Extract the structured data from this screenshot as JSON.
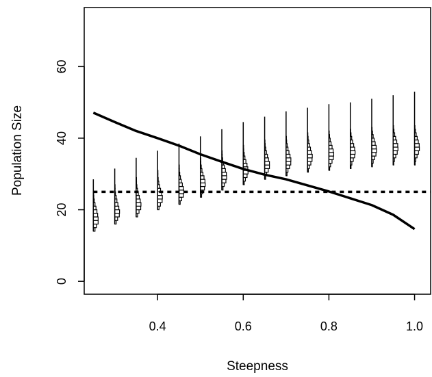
{
  "chart_data": {
    "type": "line",
    "title": "",
    "xlabel": "Steepness",
    "ylabel": "Population Size",
    "xlim": [
      0.2287,
      1.0375
    ],
    "ylim": [
      -3.6,
      76.5
    ],
    "x_ticks": [
      0.4,
      0.6,
      0.8,
      1.0
    ],
    "x_tick_labels": [
      "0.4",
      "0.6",
      "0.8",
      "1.0"
    ],
    "y_ticks": [
      0,
      20,
      40,
      60
    ],
    "y_tick_labels": [
      "0",
      "20",
      "40",
      "60"
    ],
    "grid": false,
    "legend": "none",
    "series": [
      {
        "kind": "solid-line",
        "x": [
          0.25,
          0.3,
          0.35,
          0.4,
          0.45,
          0.5,
          0.55,
          0.6,
          0.65,
          0.7,
          0.75,
          0.8,
          0.85,
          0.9,
          0.95,
          1.0
        ],
        "y": [
          47.1,
          44.5,
          42,
          40,
          37.9,
          35.5,
          33.4,
          31.4,
          29.8,
          28.5,
          26.8,
          25.1,
          23.2,
          21.3,
          18.6,
          14.6
        ]
      },
      {
        "kind": "dashed-reference",
        "x": [
          0.25,
          1.0375
        ],
        "y": [
          25,
          25
        ]
      }
    ],
    "distributions": {
      "bin_width": 1,
      "density_scale_steepness_per_unit": 0.0112,
      "groups": [
        {
          "x": 0.25,
          "y_min": 14,
          "y_max": 28.5,
          "bins_start": 14,
          "counts": [
            0.35,
            0.65,
            1.0,
            1.0,
            0.9,
            0.75,
            0.55,
            0.35,
            0.2,
            0.1,
            0.05
          ]
        },
        {
          "x": 0.3,
          "y_min": 16,
          "y_max": 31.5,
          "bins_start": 16,
          "counts": [
            0.3,
            0.6,
            0.95,
            1.0,
            0.85,
            0.65,
            0.45,
            0.3,
            0.15,
            0.08,
            0.04
          ]
        },
        {
          "x": 0.35,
          "y_min": 18,
          "y_max": 34.5,
          "bins_start": 18,
          "counts": [
            0.3,
            0.6,
            0.95,
            1.0,
            0.85,
            0.65,
            0.45,
            0.28,
            0.15,
            0.08,
            0.04
          ]
        },
        {
          "x": 0.4,
          "y_min": 20,
          "y_max": 36.5,
          "bins_start": 20,
          "counts": [
            0.3,
            0.6,
            0.95,
            1.0,
            0.85,
            0.62,
            0.42,
            0.25,
            0.13,
            0.06,
            0.03
          ]
        },
        {
          "x": 0.45,
          "y_min": 21.5,
          "y_max": 38.5,
          "bins_start": 21.5,
          "counts": [
            0.25,
            0.55,
            0.9,
            1.0,
            0.9,
            0.7,
            0.48,
            0.3,
            0.16,
            0.08,
            0.04
          ]
        },
        {
          "x": 0.5,
          "y_min": 23.5,
          "y_max": 40.5,
          "bins_start": 23.5,
          "counts": [
            0.25,
            0.5,
            0.85,
            1.0,
            0.95,
            0.75,
            0.52,
            0.32,
            0.18,
            0.09,
            0.04
          ]
        },
        {
          "x": 0.55,
          "y_min": 25.5,
          "y_max": 42.5,
          "bins_start": 25.5,
          "counts": [
            0.25,
            0.5,
            0.85,
            1.0,
            0.95,
            0.75,
            0.52,
            0.32,
            0.18,
            0.09,
            0.04
          ]
        },
        {
          "x": 0.6,
          "y_min": 27,
          "y_max": 44.5,
          "bins_start": 27,
          "counts": [
            0.22,
            0.45,
            0.8,
            1.0,
            0.95,
            0.78,
            0.55,
            0.35,
            0.2,
            0.1,
            0.05
          ]
        },
        {
          "x": 0.65,
          "y_min": 28.5,
          "y_max": 46,
          "bins_start": 28.5,
          "counts": [
            0.2,
            0.42,
            0.75,
            1.0,
            1.0,
            0.8,
            0.58,
            0.38,
            0.22,
            0.11,
            0.05
          ]
        },
        {
          "x": 0.7,
          "y_min": 29.5,
          "y_max": 47.5,
          "bins_start": 29.5,
          "counts": [
            0.2,
            0.4,
            0.72,
            0.98,
            1.0,
            0.82,
            0.6,
            0.4,
            0.23,
            0.12,
            0.05
          ]
        },
        {
          "x": 0.75,
          "y_min": 30.5,
          "y_max": 48.5,
          "bins_start": 30.5,
          "counts": [
            0.18,
            0.38,
            0.7,
            0.95,
            1.0,
            0.85,
            0.62,
            0.42,
            0.25,
            0.13,
            0.06
          ]
        },
        {
          "x": 0.8,
          "y_min": 31,
          "y_max": 49.5,
          "bins_start": 31,
          "counts": [
            0.16,
            0.35,
            0.65,
            0.92,
            1.0,
            0.88,
            0.66,
            0.45,
            0.27,
            0.14,
            0.06
          ]
        },
        {
          "x": 0.85,
          "y_min": 31.5,
          "y_max": 50,
          "bins_start": 31.5,
          "counts": [
            0.15,
            0.32,
            0.62,
            0.9,
            1.0,
            0.9,
            0.7,
            0.48,
            0.29,
            0.15,
            0.07
          ]
        },
        {
          "x": 0.9,
          "y_min": 32,
          "y_max": 51,
          "bins_start": 32,
          "counts": [
            0.14,
            0.3,
            0.58,
            0.88,
            1.0,
            0.92,
            0.72,
            0.5,
            0.3,
            0.16,
            0.07
          ]
        },
        {
          "x": 0.95,
          "y_min": 32.5,
          "y_max": 52,
          "bins_start": 32.5,
          "counts": [
            0.13,
            0.28,
            0.55,
            0.85,
            1.0,
            0.95,
            0.75,
            0.52,
            0.32,
            0.17,
            0.08
          ]
        },
        {
          "x": 1.0,
          "y_min": 32.5,
          "y_max": 53,
          "bins_start": 32.5,
          "counts": [
            0.12,
            0.26,
            0.52,
            0.82,
            1.0,
            0.97,
            0.78,
            0.55,
            0.34,
            0.18,
            0.08
          ]
        }
      ]
    }
  }
}
